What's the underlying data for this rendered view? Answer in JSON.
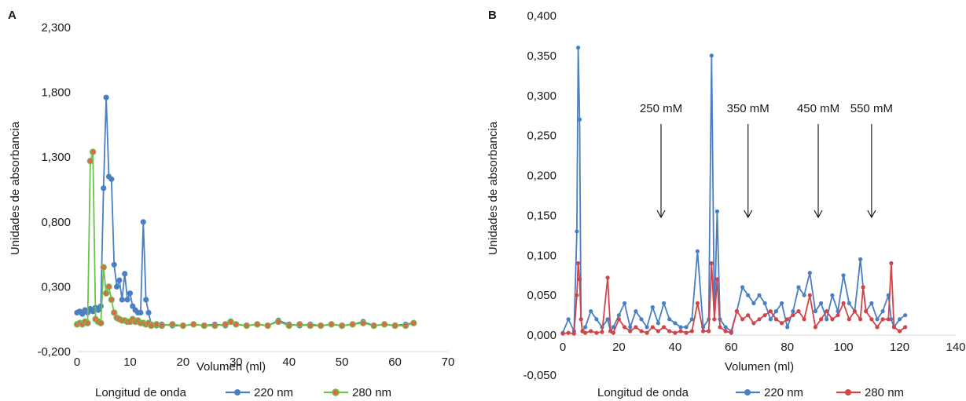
{
  "chart_data": [
    {
      "panel_label": "A",
      "type": "line",
      "xlabel": "Volumen (ml)",
      "ylabel": "Unidades de absorbancia",
      "xlim": [
        0,
        70
      ],
      "ylim": [
        -0.2,
        2.3
      ],
      "x_ticks": [
        "0",
        "10",
        "20",
        "30",
        "40",
        "50",
        "60",
        "70"
      ],
      "y_ticks": [
        "-0,200",
        "0,300",
        "0,800",
        "1,300",
        "1,800",
        "2,300"
      ],
      "legend_title": "Longitud de onda",
      "legend_position": "bottom",
      "grid": false,
      "series": [
        {
          "name": "220 nm",
          "color": "#4a7fc1",
          "x": [
            0,
            0.5,
            1,
            1.5,
            2,
            2.5,
            3,
            3.5,
            4,
            4.5,
            5,
            5.5,
            6,
            6.5,
            7,
            7.5,
            8,
            8.5,
            9,
            9.5,
            10,
            10.5,
            11,
            11.5,
            12,
            12.5,
            13,
            13.5,
            14,
            15,
            16,
            18,
            20,
            22,
            24,
            26,
            28,
            29,
            30,
            32,
            34,
            36,
            38,
            40,
            42,
            44,
            46,
            48,
            50,
            52,
            54,
            56,
            58,
            60,
            62,
            63.5
          ],
          "values": [
            0.1,
            0.11,
            0.09,
            0.12,
            0.1,
            0.13,
            0.11,
            0.14,
            0.12,
            0.15,
            1.06,
            1.76,
            1.15,
            1.13,
            0.47,
            0.3,
            0.35,
            0.2,
            0.4,
            0.2,
            0.25,
            0.15,
            0.12,
            0.1,
            0.1,
            0.8,
            0.2,
            0.1,
            0.01,
            0.0,
            0.01,
            0.0,
            0.0,
            0.01,
            0.0,
            0.01,
            0.0,
            0.03,
            0.01,
            0.0,
            0.01,
            0.0,
            0.04,
            0.01,
            0.0,
            0.01,
            0.0,
            0.01,
            0.0,
            0.01,
            0.03,
            0.0,
            0.01,
            0.0,
            0.01,
            0.02
          ]
        },
        {
          "name": "280 nm",
          "color": "#6cc24a",
          "marker_fill": "#e2664b",
          "x": [
            0,
            0.5,
            1,
            1.5,
            2,
            2.5,
            3,
            3.5,
            4,
            4.5,
            5,
            5.5,
            6,
            6.5,
            7,
            7.5,
            8,
            8.5,
            9,
            9.5,
            10,
            10.5,
            11,
            11.5,
            12,
            12.5,
            13,
            13.5,
            14,
            15,
            16,
            18,
            20,
            22,
            24,
            26,
            28,
            29,
            30,
            32,
            34,
            36,
            38,
            40,
            42,
            44,
            46,
            48,
            50,
            52,
            54,
            56,
            58,
            60,
            62,
            63.5
          ],
          "values": [
            0.01,
            0.02,
            0.01,
            0.03,
            0.02,
            1.27,
            1.34,
            0.05,
            0.03,
            0.02,
            0.45,
            0.25,
            0.3,
            0.2,
            0.1,
            0.06,
            0.05,
            0.04,
            0.04,
            0.03,
            0.03,
            0.05,
            0.03,
            0.04,
            0.02,
            0.02,
            0.01,
            0.02,
            0.0,
            0.01,
            0.0,
            0.01,
            0.0,
            0.01,
            0.0,
            0.0,
            0.01,
            0.03,
            0.01,
            0.0,
            0.01,
            0.0,
            0.03,
            0.0,
            0.01,
            0.0,
            0.0,
            0.01,
            0.0,
            0.01,
            0.02,
            0.0,
            0.01,
            0.0,
            0.0,
            0.02
          ]
        }
      ]
    },
    {
      "panel_label": "B",
      "type": "line",
      "xlabel": "Volumen (ml)",
      "ylabel": "Unidades de absorbancia",
      "xlim": [
        0,
        140
      ],
      "ylim": [
        -0.05,
        0.4
      ],
      "x_ticks": [
        "0",
        "20",
        "40",
        "60",
        "80",
        "100",
        "120",
        "140"
      ],
      "y_ticks": [
        "-0,050",
        "0,000",
        "0,050",
        "0,100",
        "0,150",
        "0,200",
        "0,250",
        "0,300",
        "0,350",
        "0,400"
      ],
      "legend_title": "Longitud de onda",
      "legend_position": "bottom",
      "grid": false,
      "annotations": [
        {
          "label": "250 mM",
          "x": 35
        },
        {
          "label": "350 mM",
          "x": 66
        },
        {
          "label": "450 mM",
          "x": 91
        },
        {
          "label": "550 mM",
          "x": 110
        }
      ],
      "series": [
        {
          "name": "220 nm",
          "color": "#4a7fc1",
          "x": [
            0,
            2,
            4,
            5,
            5.5,
            6,
            6.5,
            7,
            8,
            10,
            12,
            14,
            16,
            17,
            18,
            20,
            22,
            24,
            26,
            28,
            30,
            32,
            34,
            36,
            38,
            40,
            42,
            44,
            46,
            48,
            50,
            52,
            53,
            54,
            55,
            56,
            58,
            60,
            62,
            64,
            66,
            68,
            70,
            72,
            74,
            76,
            78,
            80,
            82,
            84,
            86,
            88,
            90,
            92,
            94,
            96,
            98,
            100,
            102,
            104,
            106,
            107,
            108,
            110,
            112,
            114,
            116,
            117,
            118,
            120,
            122
          ],
          "values": [
            0.003,
            0.02,
            0.005,
            0.13,
            0.36,
            0.27,
            0.02,
            0.005,
            0.01,
            0.03,
            0.02,
            0.01,
            0.02,
            0.005,
            0.01,
            0.025,
            0.04,
            0.01,
            0.03,
            0.02,
            0.01,
            0.035,
            0.015,
            0.04,
            0.02,
            0.015,
            0.01,
            0.01,
            0.02,
            0.105,
            0.01,
            0.02,
            0.35,
            0.02,
            0.155,
            0.02,
            0.01,
            0.005,
            0.03,
            0.06,
            0.05,
            0.04,
            0.05,
            0.04,
            0.02,
            0.03,
            0.04,
            0.01,
            0.03,
            0.06,
            0.05,
            0.078,
            0.03,
            0.04,
            0.02,
            0.05,
            0.03,
            0.075,
            0.04,
            0.03,
            0.095,
            0.06,
            0.03,
            0.04,
            0.02,
            0.03,
            0.05,
            0.02,
            0.01,
            0.02,
            0.025
          ]
        },
        {
          "name": "280 nm",
          "color": "#d0454a",
          "x": [
            0,
            2,
            4,
            5,
            5.5,
            6,
            6.5,
            7,
            8,
            10,
            12,
            14,
            16,
            17,
            18,
            20,
            22,
            24,
            26,
            28,
            30,
            32,
            34,
            36,
            38,
            40,
            42,
            44,
            46,
            48,
            50,
            52,
            53,
            54,
            55,
            56,
            58,
            60,
            62,
            64,
            66,
            68,
            70,
            72,
            74,
            76,
            78,
            80,
            82,
            84,
            86,
            88,
            90,
            92,
            94,
            96,
            98,
            100,
            102,
            104,
            106,
            107,
            108,
            110,
            112,
            114,
            116,
            117,
            118,
            120,
            122
          ],
          "values": [
            0.002,
            0.003,
            0.002,
            0.05,
            0.09,
            0.07,
            0.02,
            0.005,
            0.003,
            0.005,
            0.003,
            0.004,
            0.072,
            0.005,
            0.003,
            0.02,
            0.01,
            0.005,
            0.01,
            0.005,
            0.003,
            0.01,
            0.005,
            0.01,
            0.005,
            0.003,
            0.005,
            0.003,
            0.005,
            0.04,
            0.005,
            0.005,
            0.09,
            0.02,
            0.07,
            0.01,
            0.005,
            0.003,
            0.03,
            0.02,
            0.025,
            0.015,
            0.02,
            0.025,
            0.03,
            0.02,
            0.015,
            0.02,
            0.025,
            0.03,
            0.02,
            0.05,
            0.01,
            0.02,
            0.03,
            0.02,
            0.025,
            0.04,
            0.02,
            0.03,
            0.02,
            0.06,
            0.03,
            0.02,
            0.01,
            0.02,
            0.02,
            0.09,
            0.01,
            0.005,
            0.01
          ]
        }
      ]
    }
  ]
}
